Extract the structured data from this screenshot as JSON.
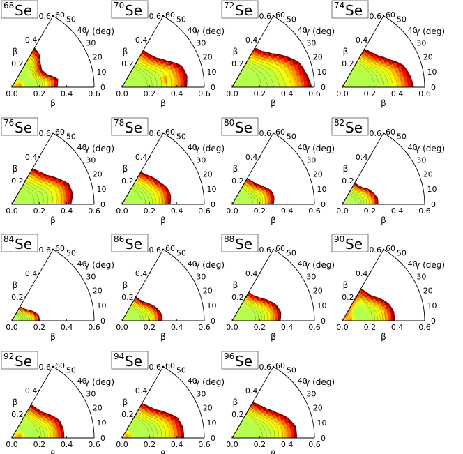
{
  "chart_data": {
    "type": "heatmap",
    "projection": "polar-sector",
    "colormap": "jet",
    "axes": {
      "xlabel": "β",
      "gamma_label": "γ (deg)",
      "beta_ticks": [
        "0.0",
        "0.2",
        "0.4",
        "0.6"
      ],
      "beta_tick_values": [
        0.0,
        0.2,
        0.4,
        0.6
      ],
      "gamma_ticks": [
        "0",
        "10",
        "20",
        "30",
        "40",
        "50",
        "60"
      ],
      "gamma_tick_values": [
        0,
        10,
        20,
        30,
        40,
        50,
        60
      ],
      "diag_ticks": [
        "0.2",
        "0.4",
        "0.6"
      ],
      "diag_tick_values": [
        0.2,
        0.4,
        0.6
      ],
      "beta_range": [
        0,
        0.6
      ],
      "gamma_range": [
        0,
        60
      ]
    },
    "panels": [
      {
        "element": "Se",
        "mass": "68",
        "boundary_beta": [
          0.33,
          0.34,
          0.27,
          0.25,
          0.27,
          0.31,
          0.33
        ],
        "min_beta": 0.17,
        "min_gamma": 30,
        "hot_beta": 0.05,
        "hot_gamma": 10
      },
      {
        "element": "Se",
        "mass": "70",
        "boundary_beta": [
          0.47,
          0.48,
          0.46,
          0.38,
          0.33,
          0.31,
          0.31
        ],
        "min_beta": 0.15,
        "min_gamma": 35,
        "hot_beta": 0.32,
        "hot_gamma": 10
      },
      {
        "element": "Se",
        "mass": "72",
        "boundary_beta": [
          0.58,
          0.55,
          0.52,
          0.45,
          0.38,
          0.34,
          0.33
        ],
        "min_beta": 0.17,
        "min_gamma": 35,
        "hot_beta": 0.5,
        "hot_gamma": 8
      },
      {
        "element": "Se",
        "mass": "74",
        "boundary_beta": [
          0.52,
          0.5,
          0.47,
          0.4,
          0.35,
          0.33,
          0.32
        ],
        "min_beta": 0.2,
        "min_gamma": 20,
        "hot_beta": 0.45,
        "hot_gamma": 15
      },
      {
        "element": "Se",
        "mass": "76",
        "boundary_beta": [
          0.43,
          0.45,
          0.44,
          0.38,
          0.33,
          0.31,
          0.3
        ],
        "min_beta": 0.13,
        "min_gamma": 45,
        "hot_beta": 0.4,
        "hot_gamma": 15
      },
      {
        "element": "Se",
        "mass": "78",
        "boundary_beta": [
          0.35,
          0.36,
          0.35,
          0.32,
          0.3,
          0.28,
          0.27
        ],
        "min_beta": 0.12,
        "min_gamma": 40,
        "hot_beta": 0.33,
        "hot_gamma": 15
      },
      {
        "element": "Se",
        "mass": "80",
        "boundary_beta": [
          0.3,
          0.31,
          0.3,
          0.26,
          0.23,
          0.22,
          0.22
        ],
        "min_beta": 0.13,
        "min_gamma": 10,
        "hot_beta": 0.28,
        "hot_gamma": 15
      },
      {
        "element": "Se",
        "mass": "82",
        "boundary_beta": [
          0.26,
          0.26,
          0.24,
          0.22,
          0.19,
          0.18,
          0.18
        ],
        "min_beta": 0.08,
        "min_gamma": 20,
        "hot_beta": 0.24,
        "hot_gamma": 15
      },
      {
        "element": "Se",
        "mass": "84",
        "boundary_beta": [
          0.2,
          0.2,
          0.18,
          0.15,
          0.13,
          0.12,
          0.12
        ],
        "min_beta": 0.05,
        "min_gamma": 20,
        "hot_beta": 0.18,
        "hot_gamma": 15
      },
      {
        "element": "Se",
        "mass": "86",
        "boundary_beta": [
          0.29,
          0.29,
          0.27,
          0.24,
          0.21,
          0.2,
          0.2
        ],
        "min_beta": 0.12,
        "min_gamma": 15,
        "hot_beta": 0.27,
        "hot_gamma": 15
      },
      {
        "element": "Se",
        "mass": "88",
        "boundary_beta": [
          0.35,
          0.36,
          0.34,
          0.3,
          0.26,
          0.24,
          0.24
        ],
        "min_beta": 0.15,
        "min_gamma": 20,
        "hot_beta": 0.33,
        "hot_gamma": 15
      },
      {
        "element": "Se",
        "mass": "90",
        "boundary_beta": [
          0.38,
          0.38,
          0.36,
          0.32,
          0.28,
          0.27,
          0.27
        ],
        "min_beta": 0.2,
        "min_gamma": 12,
        "hot_beta": 0.05,
        "hot_gamma": 10
      },
      {
        "element": "Se",
        "mass": "92",
        "boundary_beta": [
          0.38,
          0.38,
          0.37,
          0.33,
          0.29,
          0.28,
          0.28
        ],
        "min_beta": 0.17,
        "min_gamma": 35,
        "hot_beta": 0.05,
        "hot_gamma": 10
      },
      {
        "element": "Se",
        "mass": "94",
        "boundary_beta": [
          0.45,
          0.45,
          0.43,
          0.37,
          0.32,
          0.3,
          0.29
        ],
        "min_beta": 0.17,
        "min_gamma": 40,
        "hot_beta": 0.04,
        "hot_gamma": 10
      },
      {
        "element": "Se",
        "mass": "96",
        "boundary_beta": [
          0.47,
          0.47,
          0.43,
          0.37,
          0.33,
          0.31,
          0.3
        ],
        "min_beta": 0.19,
        "min_gamma": 45,
        "hot_beta": 0.42,
        "hot_gamma": 15
      }
    ]
  }
}
